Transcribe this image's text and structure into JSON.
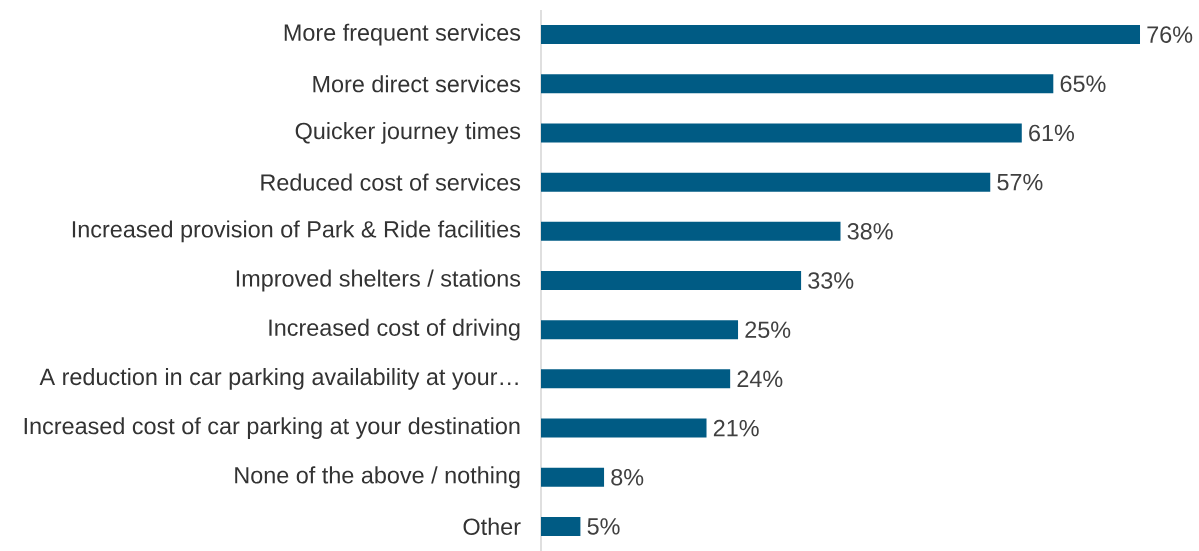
{
  "chart_data": {
    "type": "bar",
    "orientation": "horizontal",
    "color": "#005b84",
    "categories": [
      "More frequent services",
      "More direct services",
      "Quicker journey times",
      "Reduced cost of services",
      "Increased provision of Park & Ride facilities",
      "Improved shelters / stations",
      "Increased cost of driving",
      "A reduction in car parking availability at your…",
      "Increased cost of car parking at your destination",
      "None of the above / nothing",
      "Other"
    ],
    "values": [
      76,
      65,
      61,
      57,
      38,
      33,
      25,
      24,
      21,
      8,
      5
    ],
    "value_labels": [
      "76%",
      "65%",
      "61%",
      "57%",
      "38%",
      "33%",
      "25%",
      "24%",
      "21%",
      "8%",
      "5%"
    ]
  }
}
